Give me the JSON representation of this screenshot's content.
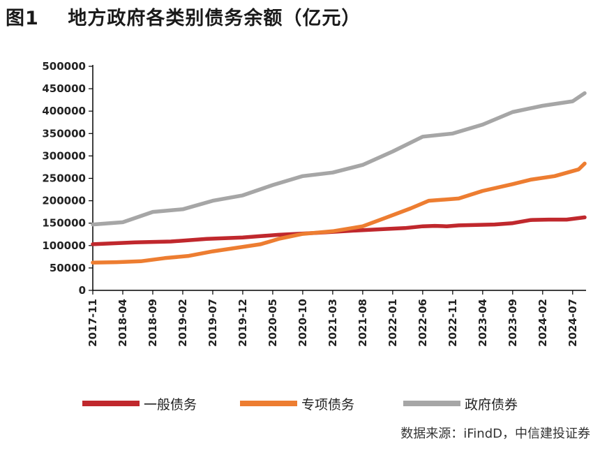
{
  "figure": {
    "label": "图1",
    "title": "地方政府各类别债务余额（亿元）",
    "source": "数据来源：iFindD，中信建投证券"
  },
  "chart_data": {
    "type": "line",
    "ylim": [
      0,
      500000
    ],
    "yticks": [
      0,
      50000,
      100000,
      150000,
      200000,
      250000,
      300000,
      350000,
      400000,
      450000,
      500000
    ],
    "x_start": "2017-11",
    "x_end": "2024-09",
    "xticks": [
      "2017-11",
      "2018-04",
      "2018-09",
      "2019-02",
      "2019-07",
      "2019-12",
      "2020-05",
      "2020-10",
      "2021-03",
      "2021-08",
      "2022-01",
      "2022-06",
      "2022-11",
      "2023-04",
      "2023-09",
      "2024-02",
      "2024-07"
    ],
    "series": [
      {
        "name": "一般债务",
        "color": "#c0282d",
        "points": [
          [
            "2017-11",
            103000
          ],
          [
            "2018-06",
            107000
          ],
          [
            "2018-12",
            109000
          ],
          [
            "2019-06",
            115000
          ],
          [
            "2019-12",
            118000
          ],
          [
            "2020-03",
            121000
          ],
          [
            "2020-06",
            124000
          ],
          [
            "2020-12",
            128000
          ],
          [
            "2021-06",
            133000
          ],
          [
            "2021-12",
            137000
          ],
          [
            "2022-03",
            139000
          ],
          [
            "2022-06",
            143000
          ],
          [
            "2022-08",
            144000
          ],
          [
            "2022-10",
            143000
          ],
          [
            "2022-12",
            145000
          ],
          [
            "2023-03",
            146000
          ],
          [
            "2023-06",
            147000
          ],
          [
            "2023-09",
            150000
          ],
          [
            "2023-12",
            157000
          ],
          [
            "2024-03",
            158000
          ],
          [
            "2024-06",
            158000
          ],
          [
            "2024-09",
            163000
          ]
        ]
      },
      {
        "name": "专项债务",
        "color": "#ed7d31",
        "points": [
          [
            "2017-11",
            62000
          ],
          [
            "2018-03",
            63000
          ],
          [
            "2018-07",
            65000
          ],
          [
            "2018-11",
            72000
          ],
          [
            "2019-03",
            77000
          ],
          [
            "2019-07",
            87000
          ],
          [
            "2019-11",
            95000
          ],
          [
            "2020-03",
            103000
          ],
          [
            "2020-06",
            115000
          ],
          [
            "2020-10",
            126000
          ],
          [
            "2021-03",
            132000
          ],
          [
            "2021-08",
            143000
          ],
          [
            "2021-12",
            163000
          ],
          [
            "2022-04",
            183000
          ],
          [
            "2022-07",
            200000
          ],
          [
            "2022-12",
            205000
          ],
          [
            "2023-04",
            222000
          ],
          [
            "2023-09",
            237000
          ],
          [
            "2023-12",
            247000
          ],
          [
            "2024-04",
            255000
          ],
          [
            "2024-08",
            270000
          ],
          [
            "2024-09",
            283000
          ]
        ]
      },
      {
        "name": "政府债券",
        "color": "#a6a6a6",
        "points": [
          [
            "2017-11",
            147000
          ],
          [
            "2018-04",
            152000
          ],
          [
            "2018-09",
            175000
          ],
          [
            "2019-02",
            181000
          ],
          [
            "2019-07",
            200000
          ],
          [
            "2019-12",
            212000
          ],
          [
            "2020-05",
            235000
          ],
          [
            "2020-10",
            255000
          ],
          [
            "2021-03",
            263000
          ],
          [
            "2021-08",
            280000
          ],
          [
            "2022-01",
            310000
          ],
          [
            "2022-06",
            343000
          ],
          [
            "2022-11",
            350000
          ],
          [
            "2023-04",
            370000
          ],
          [
            "2023-09",
            398000
          ],
          [
            "2024-02",
            412000
          ],
          [
            "2024-07",
            422000
          ],
          [
            "2024-09",
            440000
          ]
        ]
      }
    ]
  }
}
